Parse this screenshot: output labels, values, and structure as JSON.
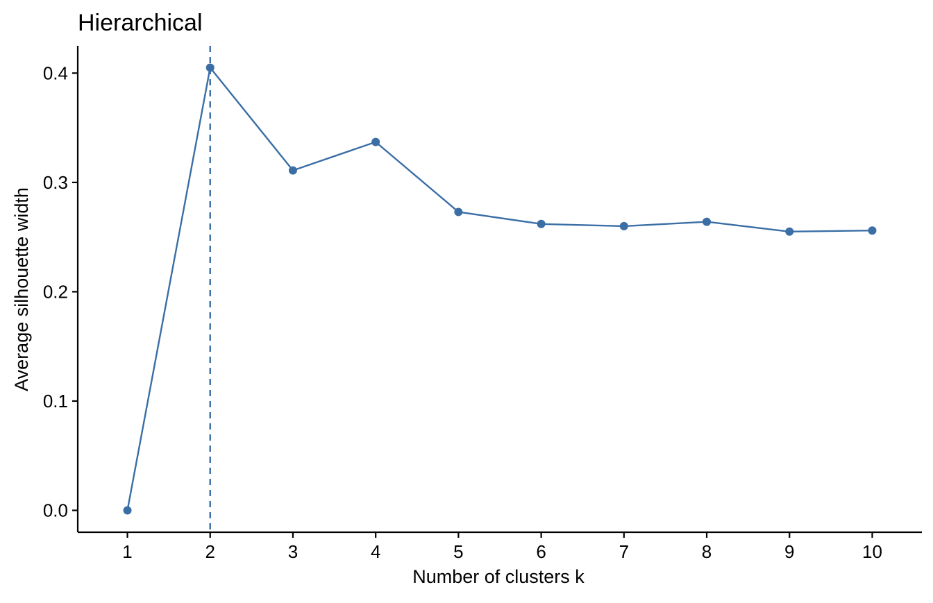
{
  "chart_data": {
    "type": "line",
    "title": "Hierarchical",
    "xlabel": "Number of clusters k",
    "ylabel": "Average silhouette width",
    "x": [
      1,
      2,
      3,
      4,
      5,
      6,
      7,
      8,
      9,
      10
    ],
    "x_tick_labels": [
      "1",
      "2",
      "3",
      "4",
      "5",
      "6",
      "7",
      "8",
      "9",
      "10"
    ],
    "series": [
      {
        "values": [
          0.0,
          0.405,
          0.311,
          0.337,
          0.273,
          0.262,
          0.26,
          0.264,
          0.255,
          0.256
        ]
      }
    ],
    "y_ticks": [
      0.0,
      0.1,
      0.2,
      0.3,
      0.4
    ],
    "y_tick_labels": [
      "0.0",
      "0.1",
      "0.2",
      "0.3",
      "0.4"
    ],
    "xlim": [
      0.4,
      10.6
    ],
    "ylim": [
      -0.02,
      0.425
    ],
    "reference_line": {
      "orientation": "vertical",
      "x": 2,
      "style": "dashed"
    },
    "grid": false,
    "legend": "none",
    "colors": {
      "series": "#3a6ea5",
      "reference_line": "#3a6ea5",
      "axis": "#000000"
    }
  }
}
